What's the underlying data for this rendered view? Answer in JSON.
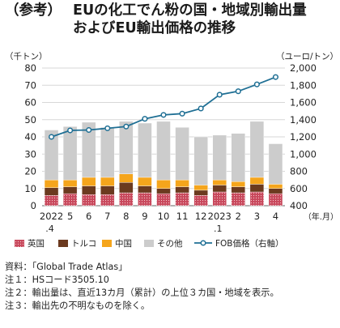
{
  "title": {
    "tag": "（参考）",
    "line1": "EUの化工でん粉の国・地域別輸出量",
    "line2": "およびEU輸出価格の推移"
  },
  "chart_data": {
    "type": "bar",
    "stacked": true,
    "left_unit": "（千トン）",
    "right_unit": "（ユーロ/トン）",
    "x_unit": "（年.月）",
    "ylim": [
      0,
      80
    ],
    "y_ticks": [
      0,
      10,
      20,
      30,
      40,
      50,
      60,
      70,
      80
    ],
    "y2lim": [
      400,
      2000
    ],
    "y2_ticks": [
      "400",
      "600",
      "800",
      "1,000",
      "1,200",
      "1,400",
      "1,600",
      "1,800",
      "2,000"
    ],
    "categories": [
      "2022",
      "5",
      "6",
      "7",
      "8",
      "9",
      "10",
      "11",
      "12",
      "2023",
      "2",
      "3",
      "4"
    ],
    "category_sublabels": [
      ".4",
      "",
      "",
      "",
      "",
      "",
      "",
      "",
      "",
      ".1",
      "",
      "",
      ""
    ],
    "series": [
      {
        "name": "英国",
        "color": "#c8485c",
        "pattern": "dots",
        "values": [
          6,
          7,
          6.5,
          6.5,
          7.5,
          7.5,
          7,
          7.5,
          6,
          8,
          7.5,
          8,
          7
        ]
      },
      {
        "name": "トルコ",
        "color": "#6b3a1f",
        "values": [
          4.5,
          4,
          5,
          5,
          6,
          4,
          3,
          3.5,
          3,
          4,
          3.5,
          4.5,
          3
        ]
      },
      {
        "name": "中国",
        "color": "#f5a51c",
        "values": [
          4.5,
          4,
          5,
          5,
          5,
          5,
          5,
          4,
          3,
          3,
          3,
          4,
          2.5
        ]
      },
      {
        "name": "その他",
        "color": "#cccccc",
        "values": [
          29,
          31,
          32,
          29,
          30.5,
          31.5,
          34,
          30.5,
          28,
          26,
          28,
          32.5,
          23.5
        ]
      }
    ],
    "line_series": {
      "name": "FOB価格（右軸）",
      "axis": "right",
      "color": "#1f6f94",
      "values": [
        1200,
        1275,
        1280,
        1300,
        1320,
        1410,
        1455,
        1470,
        1530,
        1690,
        1730,
        1810,
        1895
      ]
    },
    "legend_position": "bottom"
  },
  "notes": [
    "資料：「Global Trade Atlas」",
    "注１：HSコード3505.10",
    "注２：輸出量は、直近13カ月（累計）の上位３カ国・地域を表示。",
    "注３：輸出先の不明なものを除く。"
  ]
}
